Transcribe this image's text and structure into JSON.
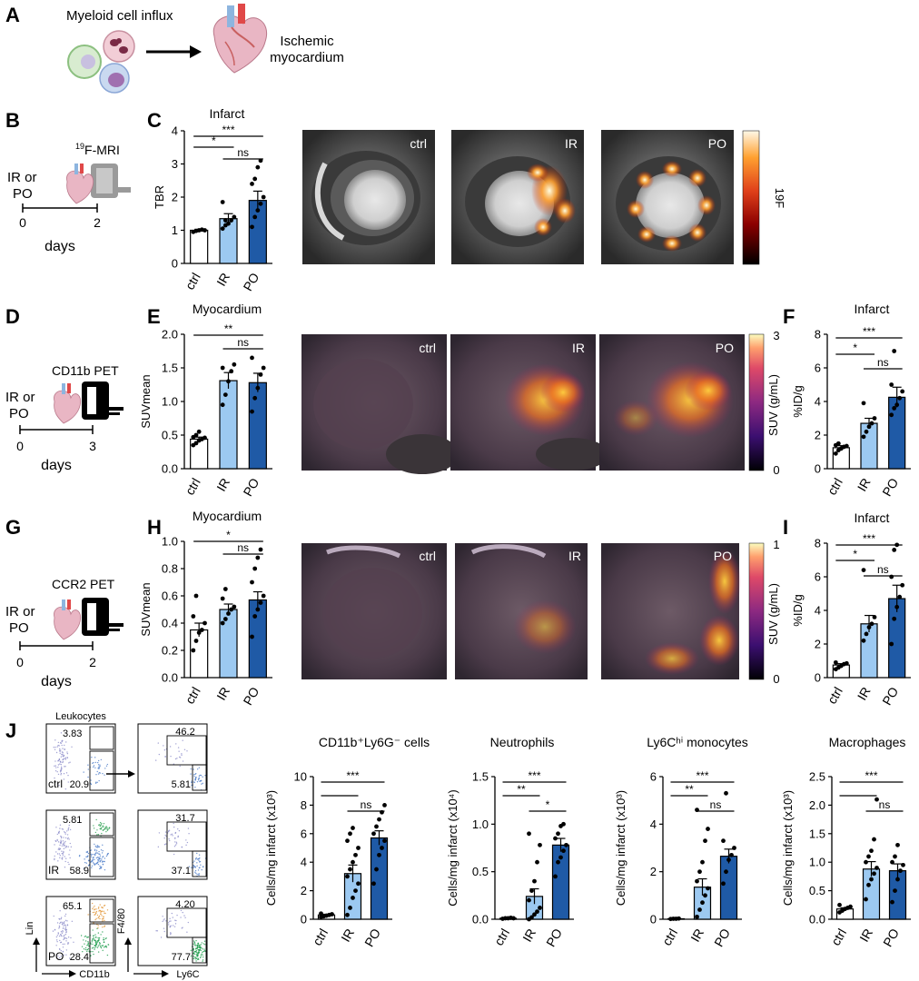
{
  "panels": {
    "A": {
      "letter": "A",
      "title": "Myeloid cell influx",
      "target_line1": "Ischemic",
      "target_line2": "myocardium"
    },
    "B": {
      "letter": "B",
      "method_pre": "19",
      "method": "F-MRI",
      "group_line1": "IR or",
      "group_line2": "PO",
      "start": "0",
      "end": "2",
      "unit": "days"
    },
    "C": {
      "letter": "C",
      "image_labels": [
        "ctrl",
        "IR",
        "PO"
      ],
      "colorbar_label": "19F"
    },
    "D": {
      "letter": "D",
      "method": "CD11b PET",
      "group_line1": "IR or",
      "group_line2": "PO",
      "start": "0",
      "end": "3",
      "unit": "days"
    },
    "E": {
      "letter": "E",
      "image_labels": [
        "ctrl",
        "IR",
        "PO"
      ],
      "colorbar_label": "SUV (g/mL)",
      "colorbar_max": "3",
      "colorbar_min": "0"
    },
    "F": {
      "letter": "F"
    },
    "G": {
      "letter": "G",
      "method": "CCR2 PET",
      "group_line1": "IR or",
      "group_line2": "PO",
      "start": "0",
      "end": "2",
      "unit": "days"
    },
    "H": {
      "letter": "H",
      "image_labels": [
        "ctrl",
        "IR",
        "PO"
      ],
      "colorbar_label": "SUV (g/mL)",
      "colorbar_max": "1",
      "colorbar_min": "0"
    },
    "I": {
      "letter": "I"
    },
    "J": {
      "letter": "J",
      "gate_title": "Leukocytes",
      "rows": [
        {
          "label": "ctrl",
          "lin_hi": "3.83",
          "cd11b": "20.9",
          "f480": "46.2",
          "ly6c": "5.81"
        },
        {
          "label": "IR",
          "lin_hi": "5.81",
          "cd11b": "58.9",
          "f480": "31.7",
          "ly6c": "37.1"
        },
        {
          "label": "PO",
          "lin_hi": "65.1",
          "cd11b": "28.4",
          "f480": "4.20",
          "ly6c": "77.7"
        }
      ],
      "axis_lin": "Lin",
      "axis_cd11b": "CD11b",
      "axis_f480": "F4/80",
      "axis_ly6c": "Ly6C"
    }
  },
  "chart_data": [
    {
      "id": "C",
      "type": "bar",
      "title": "Infarct",
      "ylabel": "TBR",
      "categories": [
        "ctrl",
        "IR",
        "PO"
      ],
      "values": [
        1.0,
        1.35,
        1.9
      ],
      "errors": [
        0.03,
        0.15,
        0.28
      ],
      "ylim": [
        0,
        4
      ],
      "yticks": [
        "0",
        "1",
        "2",
        "3",
        "4"
      ],
      "points": [
        [
          0.95,
          0.98,
          1.0,
          1.02,
          1.0
        ],
        [
          1.05,
          1.15,
          1.2,
          1.3,
          1.4,
          1.85,
          1.3
        ],
        [
          1.1,
          1.4,
          1.6,
          1.8,
          2.0,
          2.4,
          2.55,
          2.9,
          3.1
        ]
      ],
      "significance": [
        "***",
        "*",
        "ns"
      ]
    },
    {
      "id": "E",
      "type": "bar",
      "title": "Myocardium",
      "ylabel": "SUVmean",
      "categories": [
        "ctrl",
        "IR",
        "PO"
      ],
      "values": [
        0.44,
        1.31,
        1.28
      ],
      "errors": [
        0.03,
        0.12,
        0.14
      ],
      "ylim": [
        0,
        2
      ],
      "yticks": [
        "0.0",
        "0.5",
        "1.0",
        "1.5",
        "2.0"
      ],
      "points": [
        [
          0.35,
          0.38,
          0.42,
          0.44,
          0.46,
          0.47,
          0.5,
          0.55
        ],
        [
          0.95,
          1.1,
          1.3,
          1.45,
          1.55,
          1.5
        ],
        [
          0.85,
          1.05,
          1.2,
          1.4,
          1.5,
          1.65
        ]
      ],
      "significance": [
        "**",
        "ns"
      ]
    },
    {
      "id": "F",
      "type": "bar",
      "title": "Infarct",
      "ylabel": "%ID/g",
      "categories": [
        "ctrl",
        "IR",
        "PO"
      ],
      "values": [
        1.25,
        2.7,
        4.25
      ],
      "errors": [
        0.12,
        0.3,
        0.6
      ],
      "ylim": [
        0,
        8
      ],
      "yticks": [
        "0",
        "2",
        "4",
        "6",
        "8"
      ],
      "points": [
        [
          0.9,
          1.1,
          1.2,
          1.3,
          1.35,
          1.4,
          1.5
        ],
        [
          1.9,
          2.2,
          2.5,
          2.7,
          3.0,
          3.9
        ],
        [
          3.2,
          3.6,
          3.8,
          4.2,
          4.6,
          5.0,
          7.0
        ]
      ],
      "significance": [
        "***",
        "*",
        "ns"
      ]
    },
    {
      "id": "H",
      "type": "bar",
      "title": "Myocardium",
      "ylabel": "SUVmean",
      "categories": [
        "ctrl",
        "IR",
        "PO"
      ],
      "values": [
        0.35,
        0.5,
        0.57
      ],
      "errors": [
        0.05,
        0.04,
        0.06
      ],
      "ylim": [
        0,
        1
      ],
      "yticks": [
        "0.0",
        "0.2",
        "0.4",
        "0.6",
        "0.8",
        "1.0"
      ],
      "points": [
        [
          0.2,
          0.27,
          0.33,
          0.35,
          0.4,
          0.45,
          0.6
        ],
        [
          0.4,
          0.43,
          0.47,
          0.5,
          0.52,
          0.58,
          0.65
        ],
        [
          0.3,
          0.45,
          0.5,
          0.55,
          0.6,
          0.7,
          0.8,
          0.88,
          0.94
        ]
      ],
      "significance": [
        "*",
        "ns"
      ]
    },
    {
      "id": "I",
      "type": "bar",
      "title": "Infarct",
      "ylabel": "%ID/g",
      "categories": [
        "ctrl",
        "IR",
        "PO"
      ],
      "values": [
        0.75,
        3.2,
        4.7
      ],
      "errors": [
        0.08,
        0.5,
        0.8
      ],
      "ylim": [
        0,
        8
      ],
      "yticks": [
        "0",
        "2",
        "4",
        "6",
        "8"
      ],
      "points": [
        [
          0.5,
          0.6,
          0.7,
          0.8,
          0.85,
          0.9
        ],
        [
          2.2,
          2.6,
          3.0,
          3.2,
          3.6,
          6.4
        ],
        [
          2.0,
          3.5,
          4.2,
          4.8,
          5.5,
          6.0,
          7.6,
          7.9
        ]
      ],
      "significance": [
        "***",
        "*",
        "ns"
      ]
    },
    {
      "id": "J1",
      "type": "bar",
      "title": "CD11b⁺Ly6G⁻ cells",
      "ylabel": "Cells/mg infarct (x10³)",
      "categories": [
        "ctrl",
        "IR",
        "PO"
      ],
      "values": [
        0.3,
        3.2,
        5.7
      ],
      "errors": [
        0.05,
        0.6,
        0.5
      ],
      "ylim": [
        0,
        10
      ],
      "yticks": [
        "0",
        "2",
        "4",
        "6",
        "8",
        "10"
      ],
      "points": [
        [
          0.15,
          0.2,
          0.25,
          0.3,
          0.35,
          0.4
        ],
        [
          0.3,
          0.8,
          1.5,
          2.0,
          2.5,
          3.0,
          3.5,
          4.0,
          4.5,
          5.0,
          5.5,
          6.0,
          6.4
        ],
        [
          2.5,
          3.5,
          4.5,
          5.0,
          5.5,
          6.0,
          6.5,
          7.0,
          7.5,
          8.0
        ]
      ],
      "significance": [
        "***",
        "",
        "ns"
      ]
    },
    {
      "id": "J2",
      "type": "bar",
      "title": "Neutrophils",
      "ylabel": "Cells/mg infarct (x10⁴)",
      "categories": [
        "ctrl",
        "IR",
        "PO"
      ],
      "values": [
        0.01,
        0.24,
        0.78
      ],
      "errors": [
        0.005,
        0.08,
        0.07
      ],
      "ylim": [
        0,
        1.5
      ],
      "yticks": [
        "0.0",
        "0.5",
        "1.0",
        "1.5"
      ],
      "points": [
        [
          0.005,
          0.01,
          0.01,
          0.015,
          0.01
        ],
        [
          0.0,
          0.02,
          0.05,
          0.08,
          0.12,
          0.2,
          0.3,
          0.4,
          0.6,
          0.78,
          0.9
        ],
        [
          0.45,
          0.6,
          0.65,
          0.72,
          0.78,
          0.85,
          0.9,
          0.98,
          1.0
        ]
      ],
      "significance": [
        "***",
        "**",
        "*"
      ]
    },
    {
      "id": "J3",
      "type": "bar",
      "title": "Ly6Cʰⁱ monocytes",
      "ylabel": "Cells/mg infarct (x10³)",
      "categories": [
        "ctrl",
        "IR",
        "PO"
      ],
      "values": [
        0.02,
        1.35,
        2.65
      ],
      "errors": [
        0.01,
        0.35,
        0.3
      ],
      "ylim": [
        0,
        6
      ],
      "yticks": [
        "0",
        "2",
        "4",
        "6"
      ],
      "points": [
        [
          0.01,
          0.02,
          0.02,
          0.03
        ],
        [
          0.1,
          0.4,
          0.7,
          1.0,
          1.3,
          1.6,
          2.0,
          2.4,
          3.3,
          3.8,
          4.6
        ],
        [
          1.5,
          2.0,
          2.5,
          2.7,
          3.0,
          3.3,
          5.3
        ]
      ],
      "significance": [
        "***",
        "**",
        "ns"
      ]
    },
    {
      "id": "J4",
      "type": "bar",
      "title": "Macrophages",
      "ylabel": "Cells/mg infarct (x10³)",
      "categories": [
        "ctrl",
        "IR",
        "PO"
      ],
      "values": [
        0.18,
        0.88,
        0.85
      ],
      "errors": [
        0.02,
        0.13,
        0.12
      ],
      "ylim": [
        0,
        2.5
      ],
      "yticks": [
        "0.0",
        "0.5",
        "1.0",
        "1.5",
        "2.0",
        "2.5"
      ],
      "points": [
        [
          0.12,
          0.15,
          0.18,
          0.2,
          0.22,
          0.25
        ],
        [
          0.35,
          0.6,
          0.7,
          0.8,
          0.9,
          1.0,
          1.1,
          1.2,
          1.4,
          2.1
        ],
        [
          0.3,
          0.5,
          0.7,
          0.85,
          0.95,
          1.0,
          1.1,
          1.3
        ]
      ],
      "significance": [
        "***",
        "",
        "ns"
      ]
    }
  ]
}
